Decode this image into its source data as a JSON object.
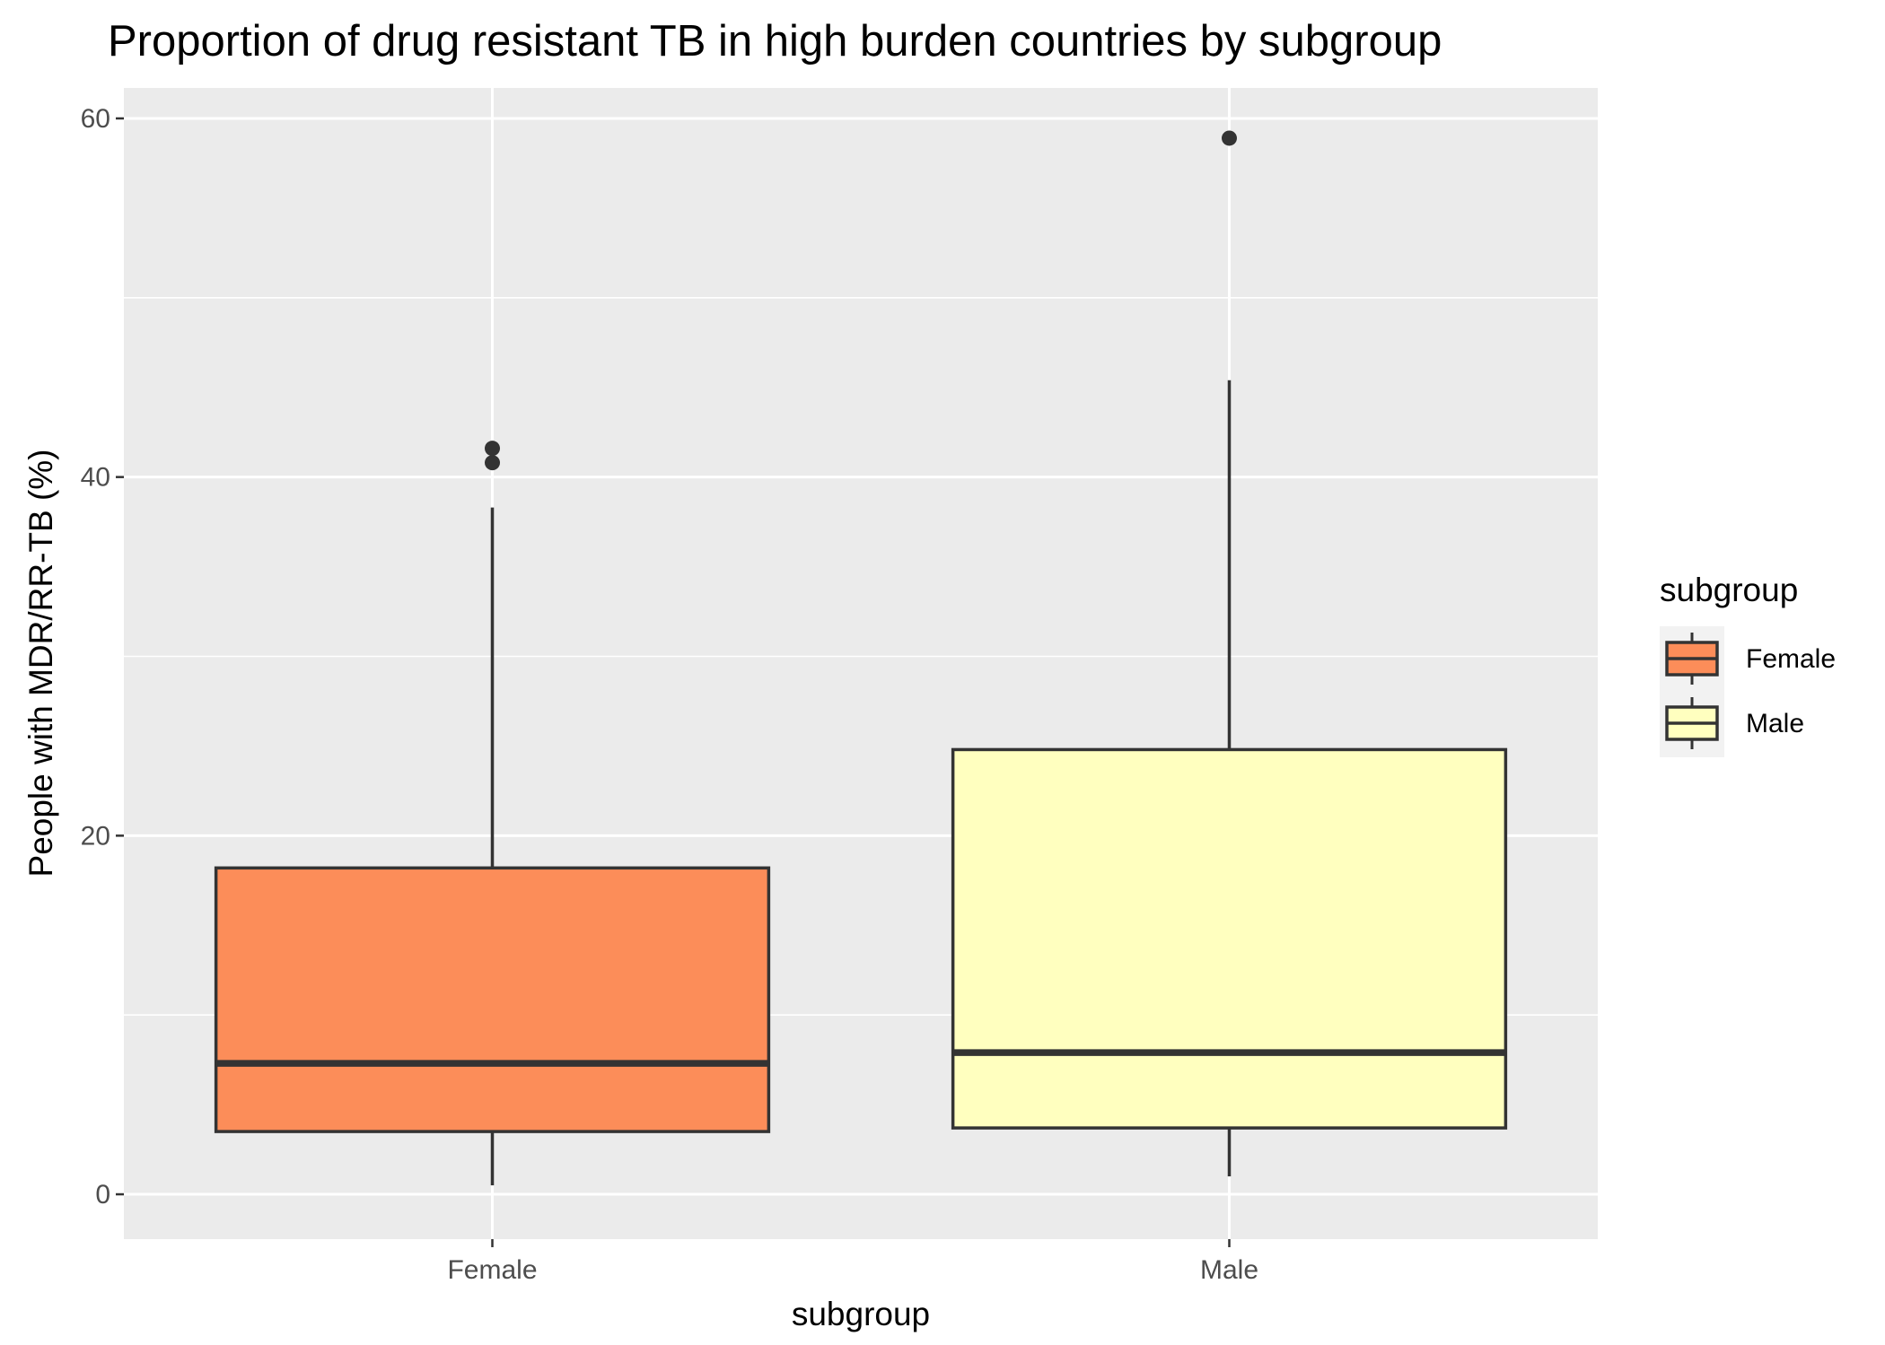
{
  "chart_data": {
    "type": "boxplot",
    "title": "Proportion of drug resistant TB in high burden countries by subgroup",
    "xlabel": "subgroup",
    "ylabel": "People with MDR/RR-TB (%)",
    "ylim": [
      -2.5,
      61.7
    ],
    "yticks": [
      0,
      20,
      40,
      60
    ],
    "categories": [
      "Female",
      "Male"
    ],
    "grid": true,
    "legend": {
      "title": "subgroup",
      "position": "right",
      "entries": [
        "Female",
        "Male"
      ]
    },
    "colors": {
      "Female": "#fc8d59",
      "Male": "#ffffbf",
      "panel_background": "#ebebeb",
      "grid": "#ffffff",
      "outline": "#333333"
    },
    "boxes": [
      {
        "name": "Female",
        "whisker_low": 0.5,
        "q1": 3.5,
        "median": 7.3,
        "q3": 18.2,
        "whisker_high": 38.3,
        "outliers": [
          40.8,
          41.6
        ]
      },
      {
        "name": "Male",
        "whisker_low": 1.0,
        "q1": 3.7,
        "median": 7.9,
        "q3": 24.8,
        "whisker_high": 45.4,
        "outliers": [
          58.9
        ]
      }
    ]
  }
}
